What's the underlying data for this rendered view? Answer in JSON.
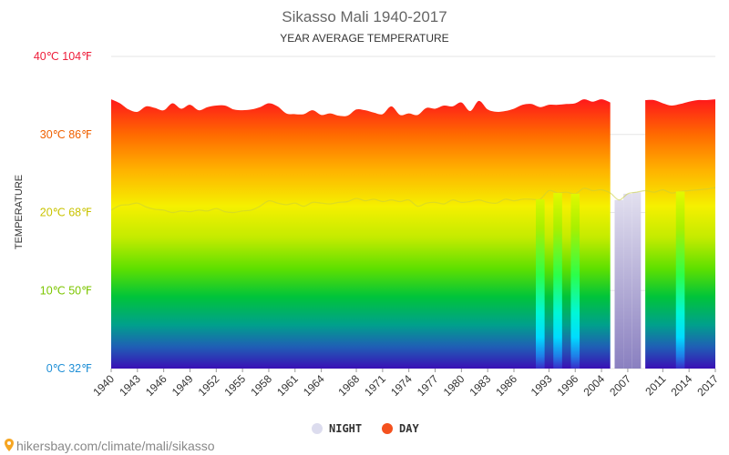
{
  "chart_data": {
    "type": "area",
    "title": "Sikasso Mali 1940-2017",
    "subtitle": "YEAR AVERAGE TEMPERATURE",
    "ylabel": "TEMPERATURE",
    "xlabel": "",
    "ylim": [
      0,
      40
    ],
    "y_ticks": [
      {
        "value": 0,
        "label": "0℃ 32℉",
        "color": "#1f8fd6"
      },
      {
        "value": 10,
        "label": "10℃ 50℉",
        "color": "#7cc600"
      },
      {
        "value": 20,
        "label": "20℃ 68℉",
        "color": "#c9c300"
      },
      {
        "value": 30,
        "label": "30℃ 86℉",
        "color": "#f06000"
      },
      {
        "value": 40,
        "label": "40℃ 104℉",
        "color": "#ee1d3a"
      }
    ],
    "x_tick_labels": [
      "1940",
      "1943",
      "1946",
      "1949",
      "1952",
      "1955",
      "1958",
      "1961",
      "1964",
      "1968",
      "1971",
      "1974",
      "1977",
      "1980",
      "1983",
      "1986",
      "1993",
      "1996",
      "2004",
      "2007",
      "2011",
      "2014",
      "2017"
    ],
    "grid": true,
    "legend_position": "bottom",
    "colors": {
      "night": "#d6d8ee",
      "day": "#f4511e"
    },
    "x": [
      1940,
      1941,
      1942,
      1943,
      1944,
      1945,
      1946,
      1947,
      1948,
      1949,
      1950,
      1951,
      1952,
      1953,
      1954,
      1955,
      1956,
      1957,
      1958,
      1959,
      1960,
      1961,
      1962,
      1963,
      1964,
      1965,
      1966,
      1967,
      1968,
      1969,
      1970,
      1971,
      1972,
      1973,
      1974,
      1975,
      1976,
      1977,
      1978,
      1979,
      1980,
      1981,
      1982,
      1983,
      1984,
      1985,
      1986,
      1987,
      1988,
      1989,
      1993,
      1994,
      1995,
      1996,
      2002,
      2003,
      2004,
      2005,
      2006,
      2007,
      2008,
      2009,
      2010,
      2011,
      2012,
      2013,
      2014,
      2015,
      2016,
      2017
    ],
    "series": [
      {
        "name": "DAY",
        "values": [
          34.5,
          34.0,
          33.2,
          32.9,
          33.6,
          33.4,
          33.1,
          34.0,
          33.3,
          33.8,
          33.1,
          33.5,
          33.7,
          33.7,
          33.2,
          33.1,
          33.2,
          33.5,
          34.0,
          33.6,
          32.7,
          32.6,
          32.6,
          33.1,
          32.5,
          32.7,
          32.4,
          32.4,
          33.2,
          33.1,
          32.8,
          32.6,
          33.6,
          32.5,
          32.7,
          32.5,
          33.4,
          33.3,
          33.7,
          33.6,
          34.1,
          33.0,
          34.3,
          33.2,
          32.9,
          33.0,
          33.3,
          33.8,
          33.9,
          33.5,
          33.8,
          33.8,
          33.9,
          34.0,
          34.5,
          34.2,
          34.5,
          34.1,
          null,
          null,
          null,
          34.4,
          34.4,
          34.0,
          33.7,
          33.9,
          34.2,
          34.4,
          34.4,
          34.5
        ]
      },
      {
        "name": "NIGHT",
        "values": [
          20.3,
          20.9,
          21.0,
          21.2,
          20.7,
          20.4,
          20.3,
          20.0,
          20.2,
          20.1,
          20.3,
          20.2,
          20.5,
          20.1,
          20.0,
          20.2,
          20.3,
          20.8,
          21.5,
          21.2,
          21.0,
          21.2,
          20.8,
          21.3,
          21.2,
          21.1,
          21.3,
          21.4,
          21.8,
          21.5,
          21.7,
          21.4,
          21.6,
          21.4,
          21.6,
          20.8,
          21.2,
          21.3,
          21.1,
          21.6,
          21.3,
          21.4,
          21.6,
          21.3,
          21.2,
          21.7,
          21.5,
          21.7,
          21.7,
          21.7,
          22.8,
          22.5,
          22.6,
          22.4,
          23.1,
          22.8,
          22.9,
          22.5,
          21.6,
          22.4,
          22.6,
          22.8,
          22.6,
          22.9,
          22.5,
          22.7,
          22.8,
          22.9,
          23.0,
          23.2
        ]
      }
    ]
  },
  "legend": {
    "night_label": "NIGHT",
    "day_label": "DAY"
  },
  "source": {
    "text": "hikersbay.com/climate/mali/sikasso"
  }
}
